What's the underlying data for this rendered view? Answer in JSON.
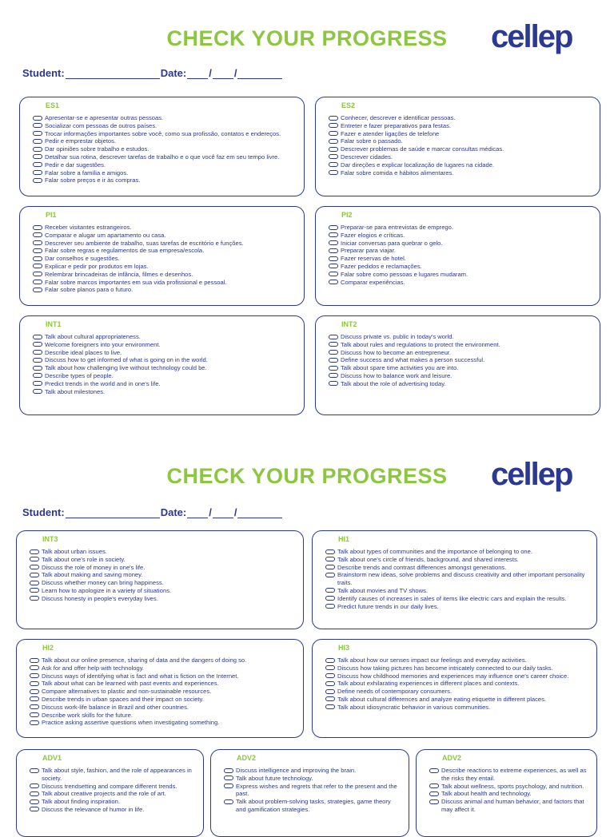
{
  "pages": [
    {
      "title": "CHECK YOUR PROGRESS",
      "logo": "cellep",
      "student_label": "Student:",
      "date_label": "Date:",
      "date_separator": "/",
      "boxes": [
        {
          "code": "ES1",
          "items": [
            "Apresentar-se e apresentar outras pessoas.",
            "Socializar com pessoas de outros países.",
            "Trocar informações importantes sobre você, como sua profissão, contatos e endereços.",
            "Pedir e emprestar objetos.",
            "Dar opiniões sobre trabalho e estudos.",
            "Detalhar sua rotina, descrever tarefas de trabalho e o que você faz em seu tempo livre.",
            "Pedir e dar sugestões.",
            "Falar sobre a família e amigos.",
            "Falar sobre preços e ir às compras."
          ]
        },
        {
          "code": "ES2",
          "items": [
            "Conhecer, descrever e identificar pessoas.",
            "Entreter e fazer preparativos para festas.",
            "Fazer e atender ligações de telefone",
            "Falar sobre o passado.",
            "Descrever problemas de saúde e marcar consultas médicas.",
            "Descrever cidades.",
            "Dar direções e explicar localização de lugares na cidade.",
            "Falar sobre comida e hábitos alimentares."
          ]
        },
        {
          "code": "PI1",
          "items": [
            "Receber visitantes estrangeiros.",
            "Comparar e alugar um apartamento ou casa.",
            "Descrever seu ambiente de trabalho, suas tarefas de escritório e funções.",
            "Falar sobre regras e regulamentos de sua empresa/escola.",
            "Dar conselhos e sugestões.",
            "Explicar e pedir por produtos em lojas.",
            "Relembrar brincadeiras de infância, filmes e desenhos.",
            "Falar sobre marcos importantes em sua vida profissional e pessoal.",
            "Falar sobre planos para o futuro."
          ]
        },
        {
          "code": "PI2",
          "items": [
            "Preparar-se para entrevistas de emprego.",
            "Fazer elogios e críticas.",
            "Iniciar conversas para quebrar o gelo.",
            "Preparar para viajar.",
            "Fazer reservas de hotel.",
            "Fazer pedidos e reclamações.",
            "Falar sobre como pessoas e lugares mudaram.",
            "Comparar experiências."
          ]
        },
        {
          "code": "INT1",
          "items": [
            "Talk about cultural appropriateness.",
            "Welcome foreigners into your environment.",
            "Describe ideal places to live.",
            "Discuss how to get informed of what is going on in the world.",
            "Talk about how challenging live without technology could be.",
            "Describe types of people.",
            "Predict trends in the world and in one's life.",
            "Talk about milestones."
          ]
        },
        {
          "code": "INT2",
          "items": [
            "Discuss private vs. public in today's world.",
            "Talk about rules and regulations to protect the environment.",
            "Discuss how to become an entrepreneur.",
            "Define success and what makes a person successful.",
            "Talk about spare time activities you are into.",
            "Discuss how to balance work and leisure.",
            "Talk about the role of advertising today."
          ]
        }
      ]
    },
    {
      "title": "CHECK YOUR PROGRESS",
      "logo": "cellep",
      "student_label": "Student:",
      "date_label": "Date:",
      "date_separator": "/",
      "boxes": [
        {
          "code": "INT3",
          "items": [
            "Talk about urban issues.",
            "Talk about one's role in society.",
            "Discuss the role of money in one's life.",
            "Talk about making and saving money.",
            "Discuss whether money can bring happiness.",
            "Learn how to apologize in a variety of situations.",
            "Discuss honesty in people's everyday lives."
          ]
        },
        {
          "code": "HI1",
          "items": [
            "Talk about types of communities and the importance of belonging to one.",
            "Talk about one's circle of friends, background, and shared interests.",
            "Describe trends and contrast differences amongst generations.",
            "Brainstorm new ideas, solve problems and discuss creativity and other important personality traits.",
            "Talk about movies and TV shows.",
            "Identify causes of increases in sales of items like electric cars and explain the results.",
            "Predict future trends in our daily lives."
          ]
        },
        {
          "code": "HI2",
          "items": [
            "Talk about our online presence, sharing of data and the dangers of doing so.",
            "Ask for and offer help with technology.",
            "Discuss ways of identifying what is fact and what is fiction on the Internet.",
            "Talk about what can be learned with past events and experiences.",
            "Compare alternatives to plastic and non-sustainable resources.",
            "Describe trends in urban spaces and their impact on society.",
            "Discuss work-life balance in Brazil and other countries.",
            "Describe work skills for the future.",
            "Practice asking assertive questions when investigating something."
          ]
        },
        {
          "code": "HI3",
          "items": [
            "Talk about how our senses impact our feelings and everyday activities.",
            "Discuss how taking pictures has become intricately connected to our daily tasks.",
            "Discuss how childhood memories and experiences may influence one's career choice.",
            "Talk about exhilarating experiences in different places and contexts.",
            "Define needs of contemporary consumers.",
            "Talk about cultural differences and analyze eating etiquette in different places.",
            "Talk about idiosyncratic behavior in various communities."
          ]
        },
        {
          "code": "ADV1",
          "items": [
            "Talk about style, fashion, and the role of appearances in society.",
            "Discuss trendsetting and compare different trends.",
            "Talk about creative projects and the role of art.",
            "Talk about finding inspiration.",
            "Discuss the relevance of humor in life."
          ]
        },
        {
          "code": "ADV2",
          "items": [
            "Discuss intelligence and improving the brain.",
            "Talk about future technology.",
            "Express wishes and regrets that refer to the present and the past.",
            "Talk about problem-solving tasks, strategies, game theory and gamification strategies."
          ]
        },
        {
          "code": "ADV2",
          "items": [
            "Describe reactions to extreme experiences, as well as the risks they entail.",
            "Talk about wellness, sports psychology, and nutrition.",
            "Talk about health and technology.",
            "Discuss animal and human behavior, and factors that may affect it."
          ]
        }
      ]
    }
  ]
}
